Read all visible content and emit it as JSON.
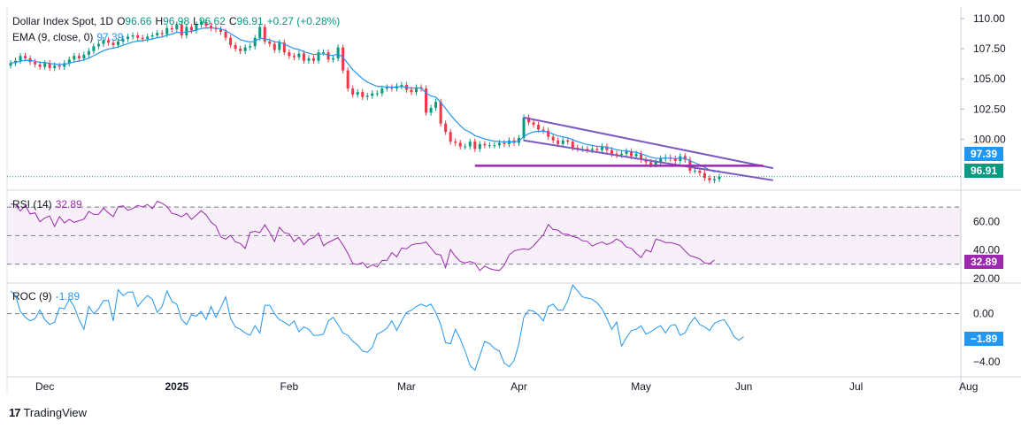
{
  "header": {
    "title": "Dollar Index Spot, 1D",
    "open_label": "O",
    "open": "96.66",
    "high_label": "H",
    "high": "96.98",
    "low_label": "L",
    "low": "96.62",
    "close_label": "C",
    "close": "96.91",
    "change": "+0.27 (+0.28%)"
  },
  "ema_legend": {
    "label": "EMA (9, close, 0)",
    "value": "97.39"
  },
  "rsi_legend": {
    "label": "RSI (14)",
    "value": "32.89"
  },
  "roc_legend": {
    "label": "ROC (9)",
    "value": "-1.89"
  },
  "price_tags": {
    "ema": "97.39",
    "close": "96.91"
  },
  "rsi_tag": "32.89",
  "roc_tag": "−1.89",
  "branding": {
    "logo_text": "17",
    "name": "TradingView"
  },
  "colors": {
    "up": "#089981",
    "down": "#f23645",
    "ema": "#2196f3",
    "rsi": "#9c27b0",
    "roc": "#2196f3",
    "pattern": "#7e57c2",
    "support": "#9c27b0"
  },
  "chart_data": [
    {
      "type": "candlestick",
      "title": "Dollar Index Spot, 1D",
      "x_ticks": [
        "Dec",
        "2025",
        "Feb",
        "Mar",
        "Apr",
        "May",
        "Jun",
        "Jul",
        "Aug"
      ],
      "y_ticks": [
        "110.00",
        "107.50",
        "105.00",
        "102.50",
        "100.00"
      ],
      "ylim": [
        96.0,
        110.8
      ],
      "series": [
        {
          "name": "EMA (9, close, 0)",
          "last": 97.39
        },
        {
          "name": "Close",
          "last": 96.91
        }
      ],
      "closes": [
        106.3,
        106.5,
        106.9,
        106.7,
        106.4,
        106.2,
        106.0,
        106.3,
        105.9,
        106.1,
        106.0,
        106.3,
        106.6,
        106.9,
        106.7,
        107.0,
        107.3,
        107.7,
        107.9,
        108.2,
        108.0,
        107.8,
        108.1,
        108.3,
        108.5,
        108.6,
        108.4,
        108.3,
        108.5,
        108.6,
        108.8,
        108.7,
        109.2,
        109.1,
        109.5,
        108.6,
        109.3,
        109.0,
        109.5,
        109.7,
        109.4,
        109.2,
        109.1,
        108.9,
        108.4,
        107.8,
        107.5,
        107.3,
        107.6,
        107.7,
        108.4,
        109.3,
        108.1,
        107.9,
        107.4,
        108.0,
        107.2,
        106.9,
        106.8,
        107.1,
        106.5,
        106.7,
        106.5,
        107.2,
        107.2,
        106.6,
        106.7,
        107.6,
        105.7,
        104.2,
        103.7,
        103.9,
        103.5,
        103.6,
        103.8,
        103.8,
        104.2,
        104.3,
        104.2,
        104.4,
        104.5,
        104.1,
        103.9,
        104.3,
        104.2,
        102.2,
        102.6,
        103.1,
        101.3,
        100.6,
        99.8,
        99.7,
        99.4,
        99.4,
        99.8,
        99.2,
        99.6,
        99.5,
        99.5,
        99.5,
        99.7,
        99.6,
        99.9,
        99.7,
        100.1,
        101.8,
        101.4,
        101.2,
        100.8,
        100.7,
        100.2,
        99.9,
        99.6,
        99.9,
        99.8,
        99.3,
        99.2,
        99.2,
        99.1,
        99.2,
        99.1,
        99.4,
        99.1,
        98.8,
        98.7,
        98.8,
        99.0,
        98.6,
        98.8,
        98.3,
        98.1,
        97.9,
        98.1,
        98.4,
        98.5,
        98.4,
        98.2,
        98.6,
        98.3,
        97.4,
        97.4,
        97.2,
        96.8,
        96.6,
        96.7,
        96.9
      ],
      "ema": [
        106.32,
        106.35,
        106.46,
        106.54,
        106.52,
        106.46,
        106.37,
        106.36,
        106.27,
        106.23,
        106.18,
        106.21,
        106.29,
        106.41,
        106.47,
        106.58,
        106.72,
        106.92,
        107.12,
        107.34,
        107.47,
        107.54,
        107.65,
        107.78,
        107.92,
        108.06,
        108.13,
        108.17,
        108.23,
        108.31,
        108.41,
        108.47,
        108.62,
        108.71,
        108.86,
        108.81,
        108.91,
        108.93,
        109.04,
        109.17,
        109.22,
        109.22,
        109.2,
        109.14,
        108.99,
        108.75,
        108.5,
        108.26,
        108.13,
        108.05,
        108.12,
        108.36,
        108.31,
        108.23,
        108.07,
        108.05,
        107.88,
        107.69,
        107.51,
        107.43,
        107.24,
        107.13,
        107.01,
        107.05,
        107.08,
        106.98,
        106.93,
        107.06,
        106.79,
        106.27,
        105.76,
        105.39,
        105.01,
        104.73,
        104.54,
        104.39,
        104.35,
        104.34,
        104.31,
        104.33,
        104.36,
        104.31,
        104.23,
        104.25,
        104.24,
        103.83,
        103.58,
        103.49,
        103.05,
        102.56,
        102.01,
        101.55,
        101.12,
        100.77,
        100.58,
        100.3,
        100.16,
        100.03,
        99.92,
        99.84,
        99.81,
        99.77,
        99.79,
        99.78,
        99.84,
        100.23,
        100.46,
        100.61,
        100.65,
        100.66,
        100.57,
        100.43,
        100.27,
        100.2,
        100.12,
        99.95,
        99.8,
        99.68,
        99.56,
        99.49,
        99.41,
        99.41,
        99.35,
        99.24,
        99.13,
        99.06,
        99.05,
        98.96,
        98.92,
        98.8,
        98.66,
        98.51,
        98.43,
        98.42,
        98.43,
        98.43,
        98.39,
        98.43,
        98.41,
        98.21,
        98.05,
        97.88,
        97.67,
        97.46,
        97.31,
        97.39
      ]
    },
    {
      "type": "line",
      "title": "RSI (14)",
      "y_ticks": [
        "60.00",
        "40.00",
        "20.00"
      ],
      "ylim": [
        18,
        80
      ],
      "bands": [
        30,
        50,
        70
      ],
      "last": 32.89,
      "values": [
        72.3,
        71.7,
        67.2,
        71.2,
        65.1,
        66.0,
        59.7,
        62.4,
        63.8,
        56.4,
        63.4,
        58.9,
        61.4,
        59.3,
        60.4,
        61.6,
        66.9,
        64.9,
        65.0,
        69.3,
        65.9,
        63.3,
        70.2,
        70.9,
        67.8,
        69.0,
        71.2,
        70.1,
        71.8,
        68.9,
        74.1,
        72.7,
        70.3,
        65.6,
        64.8,
        63.2,
        65.6,
        61.4,
        64.4,
        67.5,
        64.5,
        59.5,
        56.8,
        49.1,
        47.5,
        50.2,
        45.6,
        44.5,
        41.0,
        52.3,
        53.0,
        52.1,
        57.6,
        52.3,
        45.9,
        55.8,
        52.0,
        51.3,
        45.8,
        48.9,
        43.6,
        47.4,
        48.6,
        51.8,
        42.9,
        45.3,
        46.8,
        48.6,
        43.5,
        37.5,
        30.5,
        29.7,
        31.2,
        27.5,
        29.6,
        28.1,
        32.6,
        32.7,
        38.1,
        35.2,
        41.3,
        40.7,
        43.5,
        44.3,
        44.5,
        45.5,
        41.4,
        37.1,
        36.5,
        27.6,
        40.2,
        35.4,
        31.9,
        30.9,
        31.9,
        30.6,
        25.5,
        28.7,
        26.9,
        26.0,
        25.5,
        29.2,
        36.4,
        39.2,
        40.2,
        40.7,
        40.2,
        42.8,
        46.9,
        50.5,
        57.8,
        54.3,
        53.9,
        51.1,
        50.9,
        49.3,
        48.6,
        46.4,
        46.0,
        42.7,
        44.2,
        45.6,
        43.7,
        45.1,
        47.7,
        45.7,
        42.0,
        41.1,
        37.5,
        34.7,
        40.0,
        38.6,
        47.5,
        46.6,
        45.1,
        45.1,
        44.3,
        43.0,
        39.2,
        35.9,
        35.0,
        33.6,
        30.9,
        30.3,
        32.9
      ]
    },
    {
      "type": "line",
      "title": "ROC (9)",
      "y_ticks": [
        "0.00",
        "−4.00"
      ],
      "ylim": [
        -5.1,
        2.4
      ],
      "zero_line": 0,
      "last": -1.89,
      "values": [
        1.9,
        1.5,
        0.2,
        -0.3,
        -0.6,
        -0.4,
        0.3,
        -0.5,
        -0.9,
        -0.7,
        0.5,
        0.4,
        1.2,
        0.6,
        -0.5,
        -1.3,
        0.6,
        0.0,
        0.4,
        1.1,
        1.1,
        -0.6,
        2.0,
        1.5,
        1.8,
        1.8,
        0.6,
        1.1,
        1.5,
        1.2,
        0.1,
        0.6,
        1.9,
        1.0,
        0.8,
        -0.5,
        -0.9,
        -0.1,
        -0.2,
        0.2,
        -0.5,
        0.6,
        -0.3,
        0.5,
        1.4,
        -0.4,
        -1.1,
        -1.3,
        -1.6,
        -1.8,
        -1.0,
        -1.6,
        0.7,
        0.7,
        0.0,
        -0.5,
        -0.7,
        -1.0,
        -0.6,
        -1.5,
        -1.1,
        -1.3,
        -1.8,
        -1.8,
        -1.7,
        -0.6,
        -0.3,
        -0.9,
        -1.6,
        -1.8,
        -2.3,
        -2.6,
        -3.1,
        -3.2,
        -2.8,
        -1.7,
        -1.5,
        -1.2,
        -0.6,
        -1.4,
        -0.6,
        0.1,
        0.3,
        0.6,
        0.8,
        0.6,
        0.8,
        0.1,
        -0.9,
        -2.4,
        -2.5,
        -1.3,
        -2.1,
        -3.1,
        -4.3,
        -4.7,
        -3.5,
        -2.3,
        -2.5,
        -2.9,
        -3.1,
        -4.1,
        -4.4,
        -3.9,
        -2.5,
        -0.3,
        0.3,
        0.2,
        -0.1,
        -0.6,
        0.6,
        0.8,
        0.3,
        0.3,
        1.1,
        2.4,
        1.9,
        1.4,
        1.3,
        1.2,
        0.9,
        0.4,
        -0.4,
        -1.3,
        -0.7,
        -2.7,
        -2.0,
        -1.4,
        -1.3,
        -1.0,
        -1.7,
        -1.5,
        -1.2,
        -1.0,
        -1.6,
        -1.0,
        -0.9,
        -1.8,
        -1.6,
        -0.8,
        -0.3,
        -0.9,
        -1.1,
        -1.4,
        -0.8,
        -0.6,
        -0.5,
        -1.1,
        -1.9,
        -2.2,
        -1.9
      ]
    }
  ]
}
